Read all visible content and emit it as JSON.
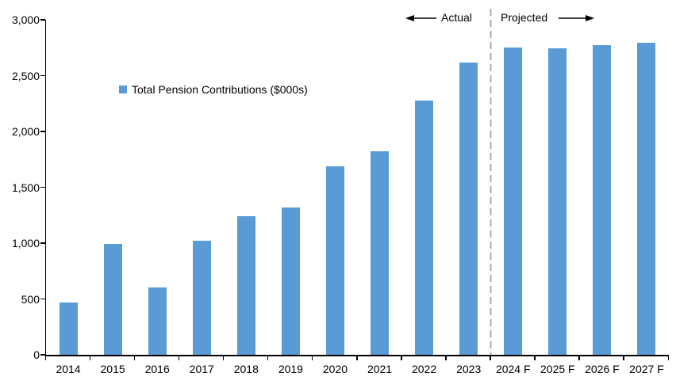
{
  "chart_data": {
    "type": "bar",
    "title": "",
    "legend": {
      "label": "Total Pension Contributions ($000s)",
      "marker_color": "#5B9BD5",
      "position": "inside-upper-left"
    },
    "categories": [
      "2014",
      "2015",
      "2016",
      "2017",
      "2018",
      "2019",
      "2020",
      "2021",
      "2022",
      "2023",
      "2024 F",
      "2025 F",
      "2026 F",
      "2027 F"
    ],
    "values": [
      470,
      990,
      605,
      1020,
      1240,
      1320,
      1690,
      1820,
      2275,
      2620,
      2750,
      2745,
      2770,
      2795
    ],
    "xlabel": "",
    "ylabel": "",
    "ylim": [
      0,
      3000
    ],
    "y_tick_step": 500,
    "y_tick_labels": [
      "0",
      "500",
      "1,000",
      "1,500",
      "2,000",
      "2,500",
      "3,000"
    ],
    "grid": "off",
    "bar_color": "#5B9BD5",
    "axis_color": "#000000",
    "annotations": {
      "actual_label": "Actual",
      "projected_label": "Projected",
      "divider_after_category": "2023",
      "divider_color": "#A6A6A6",
      "arrow_color": "#000000"
    }
  }
}
